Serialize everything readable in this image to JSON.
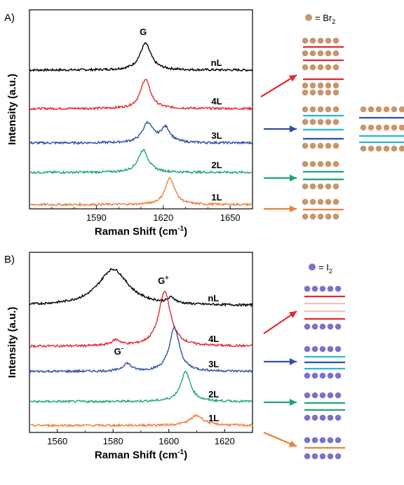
{
  "chart_data": [
    {
      "type": "line",
      "panel_label": "A)",
      "xlabel": "Raman Shift (cm",
      "xlabel_sup": "-1",
      "xlabel_end": ")",
      "ylabel": "Intensity (a.u.)",
      "xlim": [
        1560,
        1660
      ],
      "xticks": [
        1590,
        1620,
        1650
      ],
      "peak_label": "G",
      "legend": {
        "label": "= Br",
        "sub": "2",
        "dot_color": "#c9956b"
      },
      "series": [
        {
          "name": "nL",
          "color": "#000000",
          "baseline": 100,
          "peaks": [
            {
              "x": 1612,
              "h": 38,
              "w": 3.0
            }
          ]
        },
        {
          "name": "4L",
          "color": "#e0282e",
          "baseline": 155,
          "peaks": [
            {
              "x": 1612,
              "h": 42,
              "w": 2.7
            }
          ]
        },
        {
          "name": "3L",
          "color": "#2e4fa8",
          "baseline": 204,
          "peaks": [
            {
              "x": 1613,
              "h": 28,
              "w": 2.8
            },
            {
              "x": 1621,
              "h": 21,
              "w": 2.6
            }
          ]
        },
        {
          "name": "2L",
          "color": "#1aa870",
          "baseline": 246,
          "peaks": [
            {
              "x": 1611,
              "h": 32,
              "w": 2.8
            }
          ]
        },
        {
          "name": "1L",
          "color": "#f07f3c",
          "baseline": 292,
          "peaks": [
            {
              "x": 1623,
              "h": 38,
              "w": 2.6
            }
          ]
        }
      ]
    },
    {
      "type": "line",
      "panel_label": "B)",
      "xlabel": "Raman Shift (cm",
      "xlabel_sup": "-1",
      "xlabel_end": ")",
      "ylabel": "Intensity (a.u.)",
      "xlim": [
        1550,
        1630
      ],
      "xticks": [
        1560,
        1580,
        1600,
        1620
      ],
      "peak_label_plus": "G",
      "peak_label_plus_sup": "+",
      "peak_label_minus": "G",
      "peak_label_minus_sup": "-",
      "legend": {
        "label": "= I",
        "sub": "2",
        "dot_color": "#7b72c8"
      },
      "series": [
        {
          "name": "nL",
          "color": "#000000",
          "baseline": 436,
          "peaks": [
            {
              "x": 1580,
              "h": 52,
              "w": 6.5
            },
            {
              "x": 1601,
              "h": 8,
              "w": 1.5
            }
          ]
        },
        {
          "name": "4L",
          "color": "#e0282e",
          "baseline": 494,
          "peaks": [
            {
              "x": 1598.5,
              "h": 78,
              "w": 2.6
            },
            {
              "x": 1581,
              "h": 8,
              "w": 2.0
            }
          ]
        },
        {
          "name": "3L",
          "color": "#2e4fa8",
          "baseline": 530,
          "peaks": [
            {
              "x": 1602,
              "h": 62,
              "w": 2.2
            },
            {
              "x": 1585,
              "h": 11,
              "w": 1.8
            }
          ]
        },
        {
          "name": "2L",
          "color": "#1aa870",
          "baseline": 573,
          "peaks": [
            {
              "x": 1606,
              "h": 42,
              "w": 2.2
            }
          ]
        },
        {
          "name": "1L",
          "color": "#f07f3c",
          "baseline": 607,
          "peaks": [
            {
              "x": 1610,
              "h": 14,
              "w": 3.0
            }
          ]
        }
      ]
    }
  ]
}
